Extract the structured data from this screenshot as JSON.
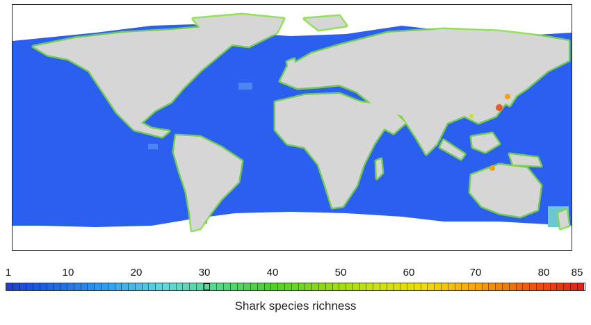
{
  "legend": {
    "title": "Shark species richness",
    "min": 1,
    "max": 85,
    "ticks": [
      "1",
      "10",
      "20",
      "30",
      "40",
      "50",
      "60",
      "70",
      "80",
      "85"
    ],
    "tick_values": [
      1,
      10,
      20,
      30,
      40,
      50,
      60,
      70,
      80,
      85
    ],
    "highlighted_value": 30,
    "color_stops": [
      "#1d3fd6",
      "#1d6fe6",
      "#37a6ee",
      "#64d8d8",
      "#58d78a",
      "#4ccf2e",
      "#8bd816",
      "#c9e30c",
      "#f1dc08",
      "#f6a406",
      "#ef5a0b",
      "#e2221a"
    ]
  },
  "map": {
    "ocean_color": "#2a5ff0",
    "land_color": "#d6d6d6",
    "polar_color": "#ffffff",
    "coast_high_color": "#7fdc3a",
    "hotspot_color": "#e95a2a"
  }
}
